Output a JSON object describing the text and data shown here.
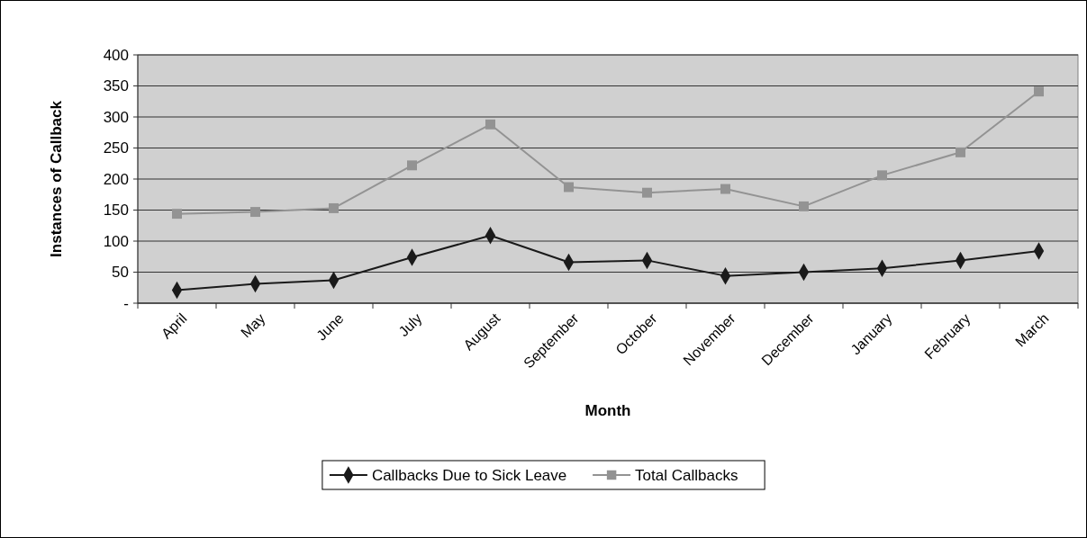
{
  "chart_data": {
    "type": "line",
    "xlabel": "Month",
    "ylabel": "Instances of Callback",
    "categories": [
      "April",
      "May",
      "June",
      "July",
      "August",
      "September",
      "October",
      "November",
      "December",
      "January",
      "February",
      "March"
    ],
    "series": [
      {
        "name": "Callbacks Due to Sick Leave",
        "color": "#1a1a1a",
        "marker": "diamond",
        "values": [
          21,
          31,
          37,
          74,
          109,
          66,
          69,
          44,
          50,
          56,
          69,
          84
        ]
      },
      {
        "name": "Total Callbacks",
        "color": "#939393",
        "marker": "square",
        "values": [
          144,
          147,
          153,
          222,
          288,
          187,
          178,
          184,
          156,
          206,
          243,
          341
        ]
      }
    ],
    "ylim": [
      0,
      400
    ],
    "yticks": [
      {
        "value": 0,
        "label": "-"
      },
      50,
      100,
      150,
      200,
      250,
      300,
      350,
      400
    ],
    "grid": "y",
    "legend": "bottom",
    "line_style": "solid"
  }
}
